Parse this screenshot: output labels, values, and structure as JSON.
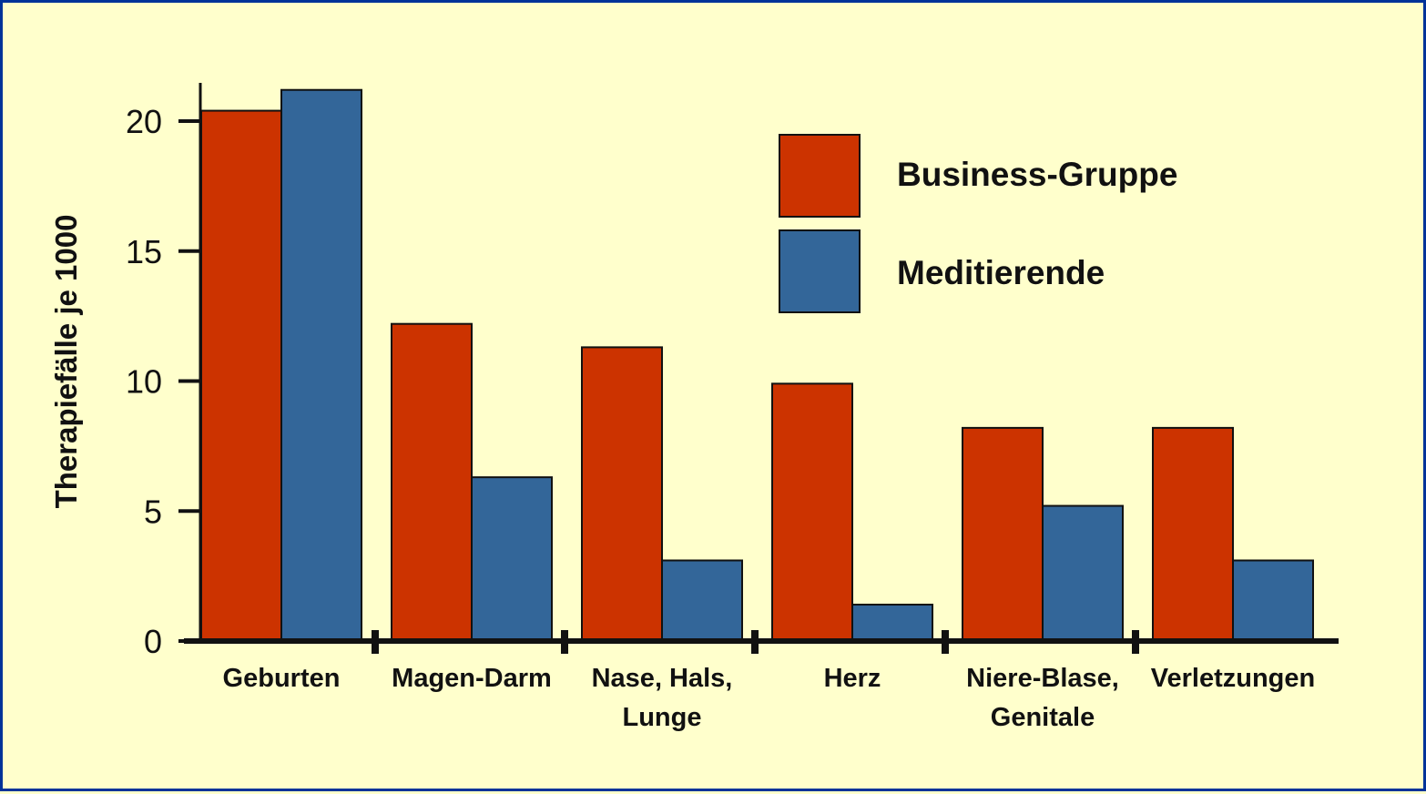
{
  "chart_data": {
    "type": "bar",
    "title": "",
    "xlabel": "",
    "ylabel": "Therapiefälle je 1000",
    "ylim": [
      0,
      21.5
    ],
    "yticks": [
      0,
      5,
      10,
      15,
      20
    ],
    "ytick_labels": [
      "0",
      "5",
      "10",
      "15",
      "20"
    ],
    "categories": [
      [
        "Geburten"
      ],
      [
        "Magen-Darm"
      ],
      [
        "Nase, Hals,",
        "Lunge"
      ],
      [
        "Herz"
      ],
      [
        "Niere-Blase,",
        "Genitale"
      ],
      [
        "Verletzungen"
      ]
    ],
    "series": [
      {
        "name": "Business-Gruppe",
        "color": "#cc3300",
        "values": [
          20.4,
          12.2,
          11.3,
          9.9,
          8.2,
          8.2
        ]
      },
      {
        "name": "Meditierende",
        "color": "#336699",
        "values": [
          21.2,
          6.3,
          3.1,
          1.4,
          5.2,
          3.1
        ]
      }
    ],
    "legend_position": "top-right",
    "grid": false
  }
}
